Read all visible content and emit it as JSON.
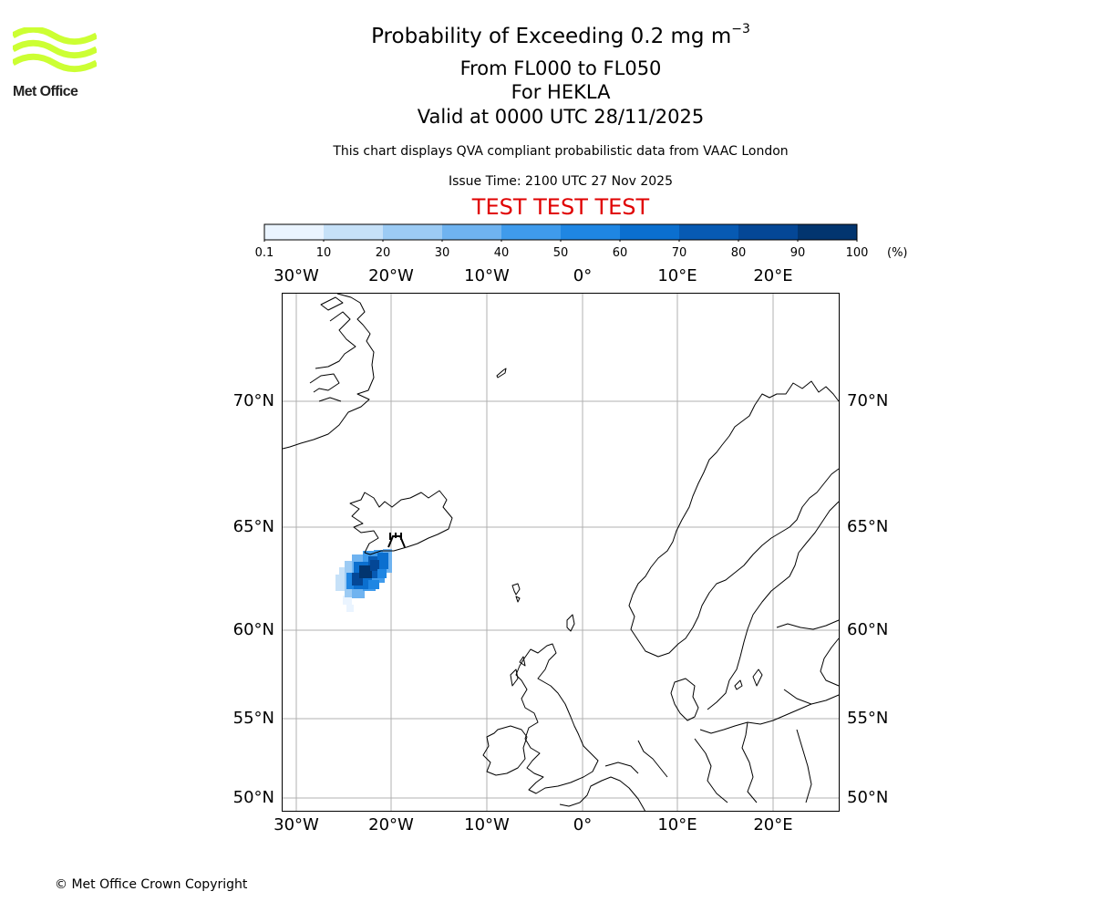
{
  "header": {
    "logo_text": "Met Office",
    "title_main": "Probability of Exceeding 0.2 mg m",
    "title_sup": "−3",
    "line_levels": "From FL000 to FL050",
    "line_volcano": "For HEKLA",
    "line_valid": "Valid at 0000 UTC 28/11/2025",
    "line_info": "This chart displays QVA compliant probabilistic data from VAAC London",
    "line_issue": "Issue Time: 2100 UTC 27 Nov 2025",
    "test_banner": "TEST TEST TEST",
    "accent_color": "#e00000",
    "logo_color": "#ccff33"
  },
  "colorbar": {
    "ticks": [
      "0.1",
      "10",
      "20",
      "30",
      "40",
      "50",
      "60",
      "70",
      "80",
      "90",
      "100"
    ],
    "unit": "(%)",
    "colors": [
      "#eaf4ff",
      "#c6e1f8",
      "#9ccbf4",
      "#6fb3f0",
      "#3f9bec",
      "#1f86e3",
      "#0b6fcf",
      "#075ab3",
      "#044796",
      "#02356f"
    ]
  },
  "map": {
    "lon_labels": [
      "30°W",
      "20°W",
      "10°W",
      "0°",
      "10°E",
      "20°E"
    ],
    "lat_labels": [
      "70°N",
      "65°N",
      "60°N",
      "55°N",
      "50°N"
    ],
    "volcano_icon": "volcano-icon",
    "plume_description_values": "probability plume SW of Iceland up to 90-100%"
  },
  "footer": {
    "copyright": "© Met Office Crown Copyright"
  }
}
